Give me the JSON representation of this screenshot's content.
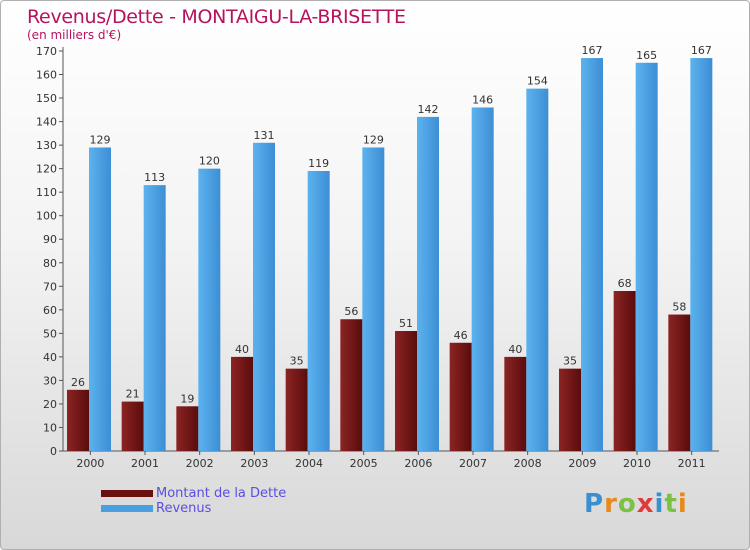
{
  "header": {
    "title": "Revenus/Dette - MONTAIGU-LA-BRISETTE",
    "subtitle": "(en milliers d'€)"
  },
  "colors": {
    "title": "#b5135e",
    "dette": "#7a1a1a",
    "revenus": "#4a9fe0",
    "legend_text": "#5a4ee0"
  },
  "logo": {
    "text": "Proxiti",
    "letters": [
      "P",
      "r",
      "o",
      "x",
      "i",
      "t",
      "i"
    ],
    "letter_colors": [
      "#3a8fd0",
      "#e88a1a",
      "#7cc242",
      "#e23a3a",
      "#3a8fd0",
      "#7cc242",
      "#e88a1a"
    ]
  },
  "chart_data": {
    "type": "bar",
    "categories": [
      "2000",
      "2001",
      "2002",
      "2003",
      "2004",
      "2005",
      "2006",
      "2007",
      "2008",
      "2009",
      "2010",
      "2011"
    ],
    "series": [
      {
        "name": "Montant de la Dette",
        "values": [
          26,
          21,
          19,
          40,
          35,
          56,
          51,
          46,
          40,
          35,
          68,
          58
        ]
      },
      {
        "name": "Revenus",
        "values": [
          129,
          113,
          120,
          131,
          119,
          129,
          142,
          146,
          154,
          167,
          165,
          167
        ]
      }
    ],
    "ylim": [
      0,
      170
    ],
    "yticks": [
      0,
      10,
      20,
      30,
      40,
      50,
      60,
      70,
      80,
      90,
      100,
      110,
      120,
      130,
      140,
      150,
      160,
      170
    ],
    "grid": false,
    "legend_position": "bottom-left"
  }
}
